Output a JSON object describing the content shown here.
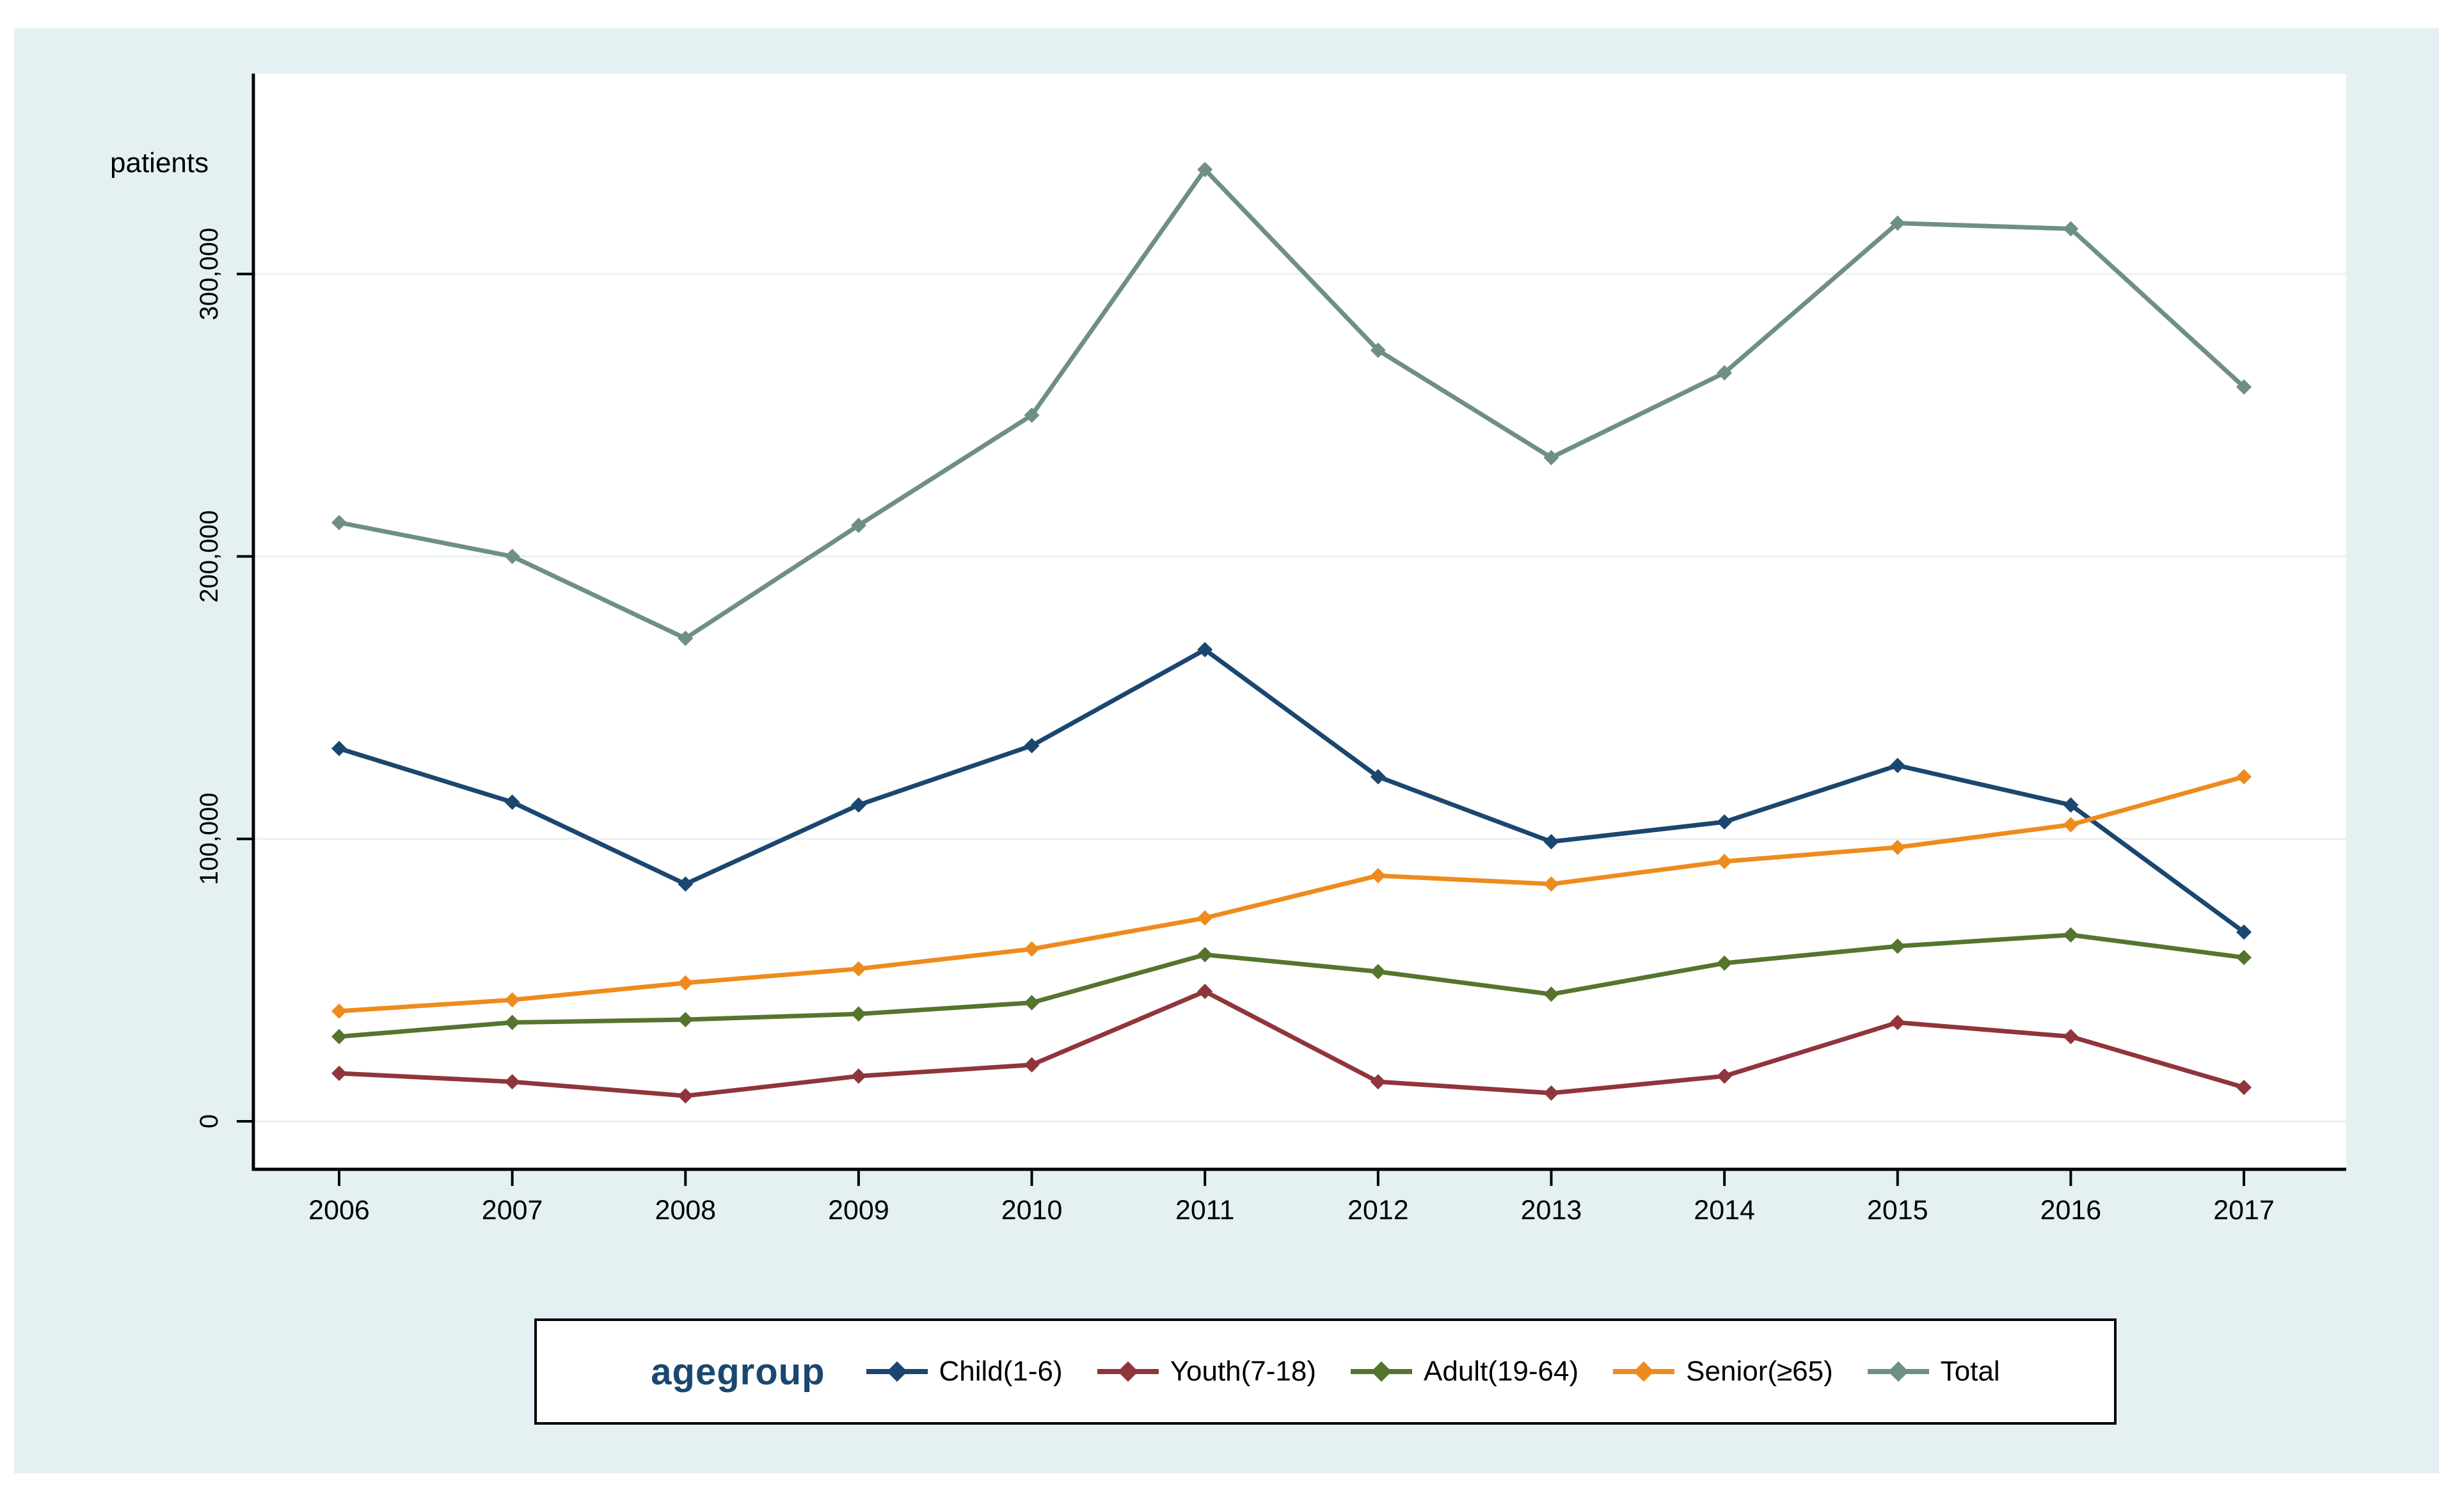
{
  "figure": {
    "background_color": "#e4f0f2",
    "plot_background_color": "#ffffff",
    "axis_color": "#000000",
    "gridline_color": "#eceff0"
  },
  "legend": {
    "title": "agegroup"
  },
  "chart_data": {
    "type": "line",
    "title": "",
    "xlabel": "",
    "ylabel": "patients",
    "categories": [
      "2006",
      "2007",
      "2008",
      "2009",
      "2010",
      "2011",
      "2012",
      "2013",
      "2014",
      "2015",
      "2016",
      "2017"
    ],
    "series": [
      {
        "name": "Child(1-6)",
        "color": "#1a476f",
        "marker": "diamond",
        "values": [
          132000,
          113000,
          84000,
          112000,
          133000,
          167000,
          122000,
          99000,
          106000,
          126000,
          112000,
          67000
        ]
      },
      {
        "name": "Youth(7-18)",
        "color": "#90353b",
        "marker": "diamond",
        "values": [
          17000,
          14000,
          9000,
          16000,
          20000,
          46000,
          14000,
          10000,
          16000,
          35000,
          30000,
          12000
        ]
      },
      {
        "name": "Adult(19-64)",
        "color": "#55752f",
        "marker": "diamond",
        "values": [
          30000,
          35000,
          36000,
          38000,
          42000,
          59000,
          53000,
          45000,
          56000,
          62000,
          66000,
          58000
        ]
      },
      {
        "name": "Senior(≥65)",
        "color": "#ee8b1e",
        "marker": "diamond",
        "values": [
          39000,
          43000,
          49000,
          54000,
          61000,
          72000,
          87000,
          84000,
          92000,
          97000,
          105000,
          122000
        ]
      },
      {
        "name": "Total",
        "color": "#6e8f87",
        "marker": "diamond",
        "values": [
          212000,
          200000,
          171000,
          211000,
          250000,
          337000,
          273000,
          235000,
          265000,
          318000,
          316000,
          260000
        ]
      }
    ],
    "yaxis": {
      "ylim": [
        0,
        371000
      ],
      "ticks": [
        0,
        100000,
        200000,
        300000
      ],
      "tick_labels": [
        "0",
        "100,000",
        "200,000",
        "300,000"
      ]
    },
    "grid": true,
    "legend_position": "bottom"
  }
}
